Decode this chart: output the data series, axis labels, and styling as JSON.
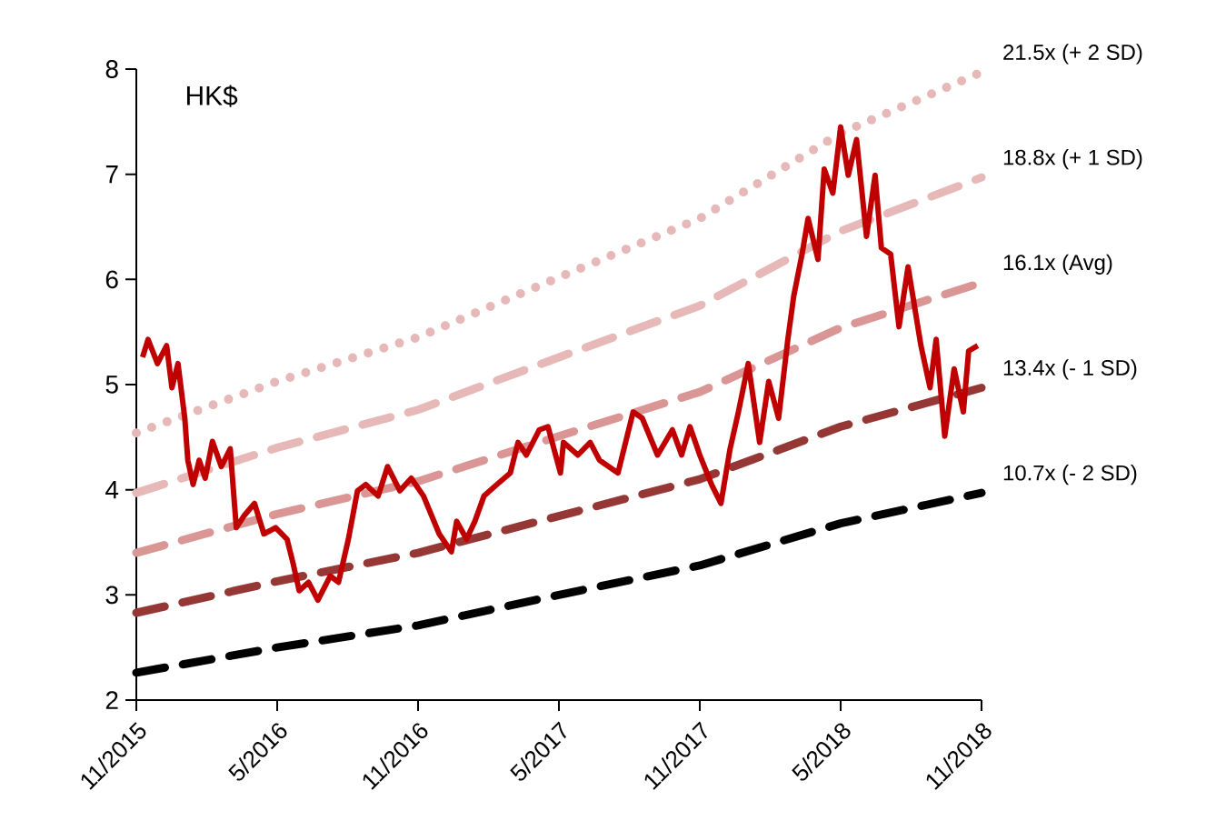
{
  "chart_data": {
    "type": "line",
    "annotations": [
      "HK$"
    ],
    "xlim": [
      "2015-11-01",
      "2018-11-01"
    ],
    "xticks": [
      {
        "value": "2015-11-01",
        "label": "11/2015"
      },
      {
        "value": "2016-05-01",
        "label": "5/2016"
      },
      {
        "value": "2016-11-01",
        "label": "11/2016"
      },
      {
        "value": "2017-05-01",
        "label": "5/2017"
      },
      {
        "value": "2017-11-01",
        "label": "11/2017"
      },
      {
        "value": "2018-05-01",
        "label": "5/2018"
      },
      {
        "value": "2018-11-01",
        "label": "11/2018"
      }
    ],
    "ylim": [
      2,
      8
    ],
    "yticks": [
      2,
      3,
      4,
      5,
      6,
      7,
      8
    ],
    "series": [
      {
        "name": "21.5x (+ 2 SD)",
        "color": "#e6b9b8",
        "line_style": "dotted",
        "x": [
          "2015-11-01",
          "2016-05-01",
          "2016-11-01",
          "2017-05-01",
          "2017-11-01",
          "2018-05-01",
          "2018-11-01"
        ],
        "values": [
          4.54,
          5.03,
          5.45,
          6.02,
          6.58,
          7.39,
          7.97
        ]
      },
      {
        "name": "18.8x (+ 1 SD)",
        "color": "#e6b9b8",
        "line_style": "dashed",
        "x": [
          "2015-11-01",
          "2016-05-01",
          "2016-11-01",
          "2017-05-01",
          "2017-11-01",
          "2018-05-01",
          "2018-11-01"
        ],
        "values": [
          3.97,
          4.4,
          4.76,
          5.26,
          5.75,
          6.46,
          6.97
        ]
      },
      {
        "name": "16.1x (Avg)",
        "color": "#d99694",
        "line_style": "dashed",
        "x": [
          "2015-11-01",
          "2016-05-01",
          "2016-11-01",
          "2017-05-01",
          "2017-11-01",
          "2018-05-01",
          "2018-11-01"
        ],
        "values": [
          3.4,
          3.77,
          4.08,
          4.51,
          4.93,
          5.54,
          5.97
        ]
      },
      {
        "name": "13.4x (- 1 SD)",
        "color": "#953735",
        "line_style": "dashed",
        "x": [
          "2015-11-01",
          "2016-05-01",
          "2016-11-01",
          "2017-05-01",
          "2017-11-01",
          "2018-05-01",
          "2018-11-01"
        ],
        "values": [
          2.83,
          3.13,
          3.4,
          3.75,
          4.1,
          4.6,
          4.97
        ]
      },
      {
        "name": "10.7x (- 2 SD)",
        "color": "#000000",
        "line_style": "dashed",
        "x": [
          "2015-11-01",
          "2016-05-01",
          "2016-11-01",
          "2017-05-01",
          "2017-11-01",
          "2018-05-01",
          "2018-11-01"
        ],
        "values": [
          2.26,
          2.5,
          2.71,
          3.0,
          3.28,
          3.68,
          3.97
        ]
      },
      {
        "color": "#c00000",
        "line_style": "solid",
        "x": [
          "2015-11-09",
          "2015-11-16",
          "2015-11-28",
          "2015-12-10",
          "2015-12-17",
          "2015-12-25",
          "2016-01-03",
          "2016-01-07",
          "2016-01-14",
          "2016-01-22",
          "2016-01-30",
          "2016-02-08",
          "2016-02-19",
          "2016-03-01",
          "2016-03-09",
          "2016-03-20",
          "2016-04-02",
          "2016-04-14",
          "2016-04-29",
          "2016-05-14",
          "2016-05-22",
          "2016-05-30",
          "2016-06-11",
          "2016-06-23",
          "2016-07-09",
          "2016-07-20",
          "2016-08-02",
          "2016-08-14",
          "2016-08-25",
          "2016-09-10",
          "2016-09-22",
          "2016-10-08",
          "2016-10-23",
          "2016-11-08",
          "2016-11-28",
          "2016-12-14",
          "2016-12-21",
          "2017-01-03",
          "2017-01-14",
          "2017-01-26",
          "2017-02-11",
          "2017-02-27",
          "2017-03-09",
          "2017-03-20",
          "2017-04-06",
          "2017-04-17",
          "2017-05-03",
          "2017-05-07",
          "2017-05-26",
          "2017-06-11",
          "2017-06-23",
          "2017-07-17",
          "2017-08-06",
          "2017-08-18",
          "2017-09-07",
          "2017-09-26",
          "2017-10-08",
          "2017-10-19",
          "2017-11-01",
          "2017-11-16",
          "2017-11-28",
          "2017-12-10",
          "2017-12-21",
          "2018-01-03",
          "2018-01-18",
          "2018-01-30",
          "2018-02-11",
          "2018-02-22",
          "2018-03-01",
          "2018-03-12",
          "2018-03-20",
          "2018-04-02",
          "2018-04-10",
          "2018-04-21",
          "2018-05-01",
          "2018-05-11",
          "2018-05-22",
          "2018-06-04",
          "2018-06-15",
          "2018-06-23",
          "2018-07-05",
          "2018-07-16",
          "2018-07-28",
          "2018-08-14",
          "2018-08-26",
          "2018-09-03",
          "2018-09-14",
          "2018-09-26",
          "2018-10-08",
          "2018-10-15",
          "2018-10-27"
        ],
        "values": [
          5.26,
          5.43,
          5.2,
          5.37,
          4.97,
          5.2,
          4.68,
          4.28,
          4.05,
          4.28,
          4.11,
          4.46,
          4.22,
          4.39,
          3.64,
          3.76,
          3.87,
          3.58,
          3.64,
          3.53,
          3.3,
          3.04,
          3.12,
          2.95,
          3.18,
          3.12,
          3.53,
          3.99,
          4.05,
          3.94,
          4.22,
          3.99,
          4.11,
          3.94,
          3.58,
          3.41,
          3.7,
          3.53,
          3.7,
          3.94,
          4.05,
          4.16,
          4.45,
          4.33,
          4.57,
          4.6,
          4.16,
          4.45,
          4.33,
          4.45,
          4.28,
          4.16,
          4.74,
          4.68,
          4.33,
          4.57,
          4.33,
          4.6,
          4.33,
          4.05,
          3.87,
          4.39,
          4.74,
          5.2,
          4.45,
          5.03,
          4.68,
          5.43,
          5.84,
          6.24,
          6.58,
          6.19,
          7.05,
          6.82,
          7.45,
          6.99,
          7.33,
          6.41,
          6.99,
          6.3,
          6.24,
          5.55,
          6.12,
          5.37,
          4.97,
          5.43,
          4.51,
          5.15,
          4.74,
          5.32,
          5.37
        ]
      }
    ]
  }
}
